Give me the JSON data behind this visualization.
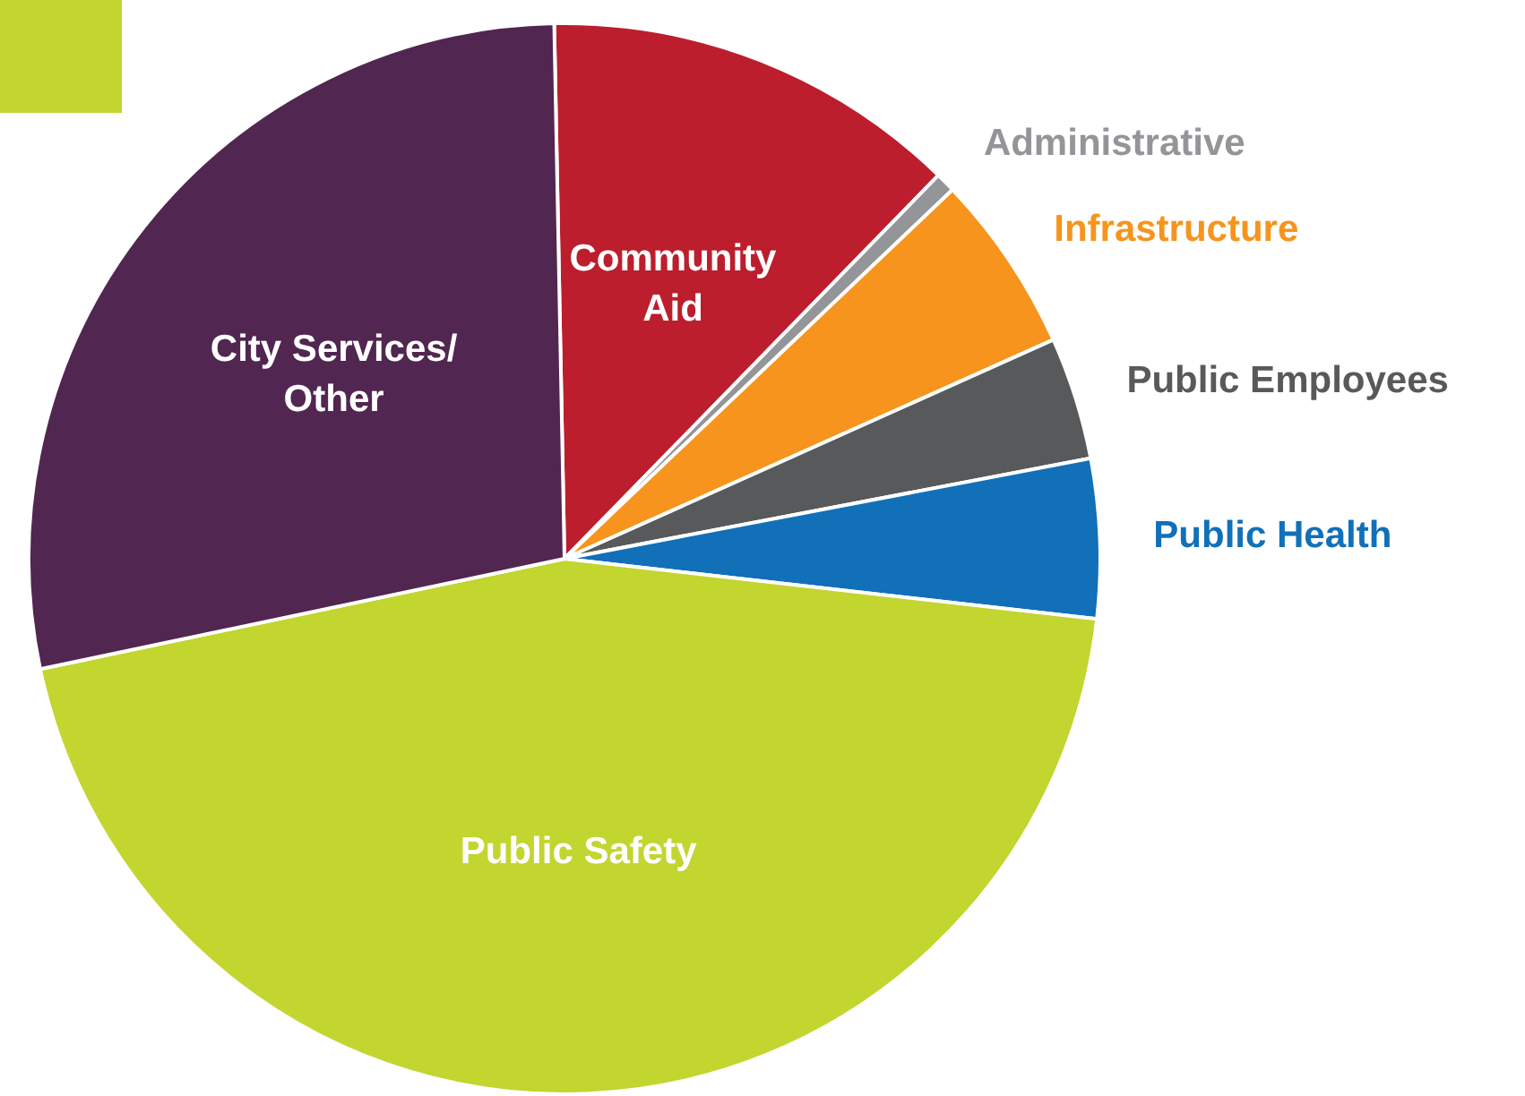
{
  "chart_data": {
    "type": "pie",
    "categories": [
      "Community Aid",
      "Administrative",
      "Infrastructure",
      "Public Employees",
      "Public Health",
      "Public Safety",
      "City Services/ Other"
    ],
    "values": [
      12.6,
      0.6,
      5.4,
      3.7,
      4.8,
      44.9,
      28.0
    ],
    "colors": [
      "#bc1e2d",
      "#939598",
      "#f7941d",
      "#58595b",
      "#1170b8",
      "#c3d52f",
      "#512650"
    ],
    "legend": false
  }
}
